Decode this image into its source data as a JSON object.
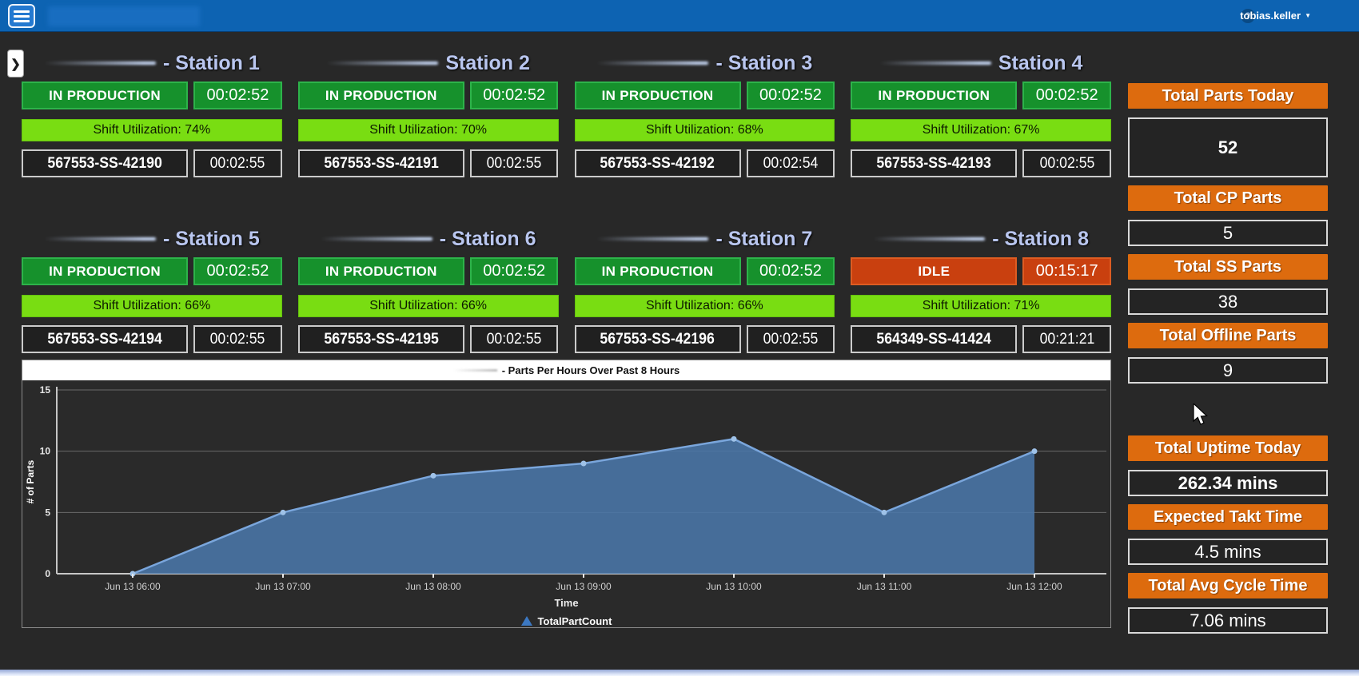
{
  "header": {
    "menu_icon": "hamburger-icon",
    "help_icon": "question-mark-icon",
    "user_name": "tobias.keller",
    "caret": "▼"
  },
  "expander_icon": "❯",
  "stations": [
    {
      "label": "- Station 1",
      "status": "IN PRODUCTION",
      "status_time": "00:02:52",
      "utilization": "Shift Utilization: 74%",
      "part_number": "567553-SS-42190",
      "part_time": "00:02:55"
    },
    {
      "label": "Station 2",
      "status": "IN PRODUCTION",
      "status_time": "00:02:52",
      "utilization": "Shift Utilization: 70%",
      "part_number": "567553-SS-42191",
      "part_time": "00:02:55"
    },
    {
      "label": "- Station 3",
      "status": "IN PRODUCTION",
      "status_time": "00:02:52",
      "utilization": "Shift Utilization: 68%",
      "part_number": "567553-SS-42192",
      "part_time": "00:02:54"
    },
    {
      "label": "Station 4",
      "status": "IN PRODUCTION",
      "status_time": "00:02:52",
      "utilization": "Shift Utilization: 67%",
      "part_number": "567553-SS-42193",
      "part_time": "00:02:55"
    },
    {
      "label": "- Station 5",
      "status": "IN PRODUCTION",
      "status_time": "00:02:52",
      "utilization": "Shift Utilization: 66%",
      "part_number": "567553-SS-42194",
      "part_time": "00:02:55"
    },
    {
      "label": "- Station 6",
      "status": "IN PRODUCTION",
      "status_time": "00:02:52",
      "utilization": "Shift Utilization: 66%",
      "part_number": "567553-SS-42195",
      "part_time": "00:02:55"
    },
    {
      "label": "- Station 7",
      "status": "IN PRODUCTION",
      "status_time": "00:02:52",
      "utilization": "Shift Utilization: 66%",
      "part_number": "567553-SS-42196",
      "part_time": "00:02:55"
    },
    {
      "label": "- Station 8",
      "status": "IDLE",
      "status_time": "00:15:17",
      "utilization": "Shift Utilization: 71%",
      "part_number": "564349-SS-41424",
      "part_time": "00:21:21"
    }
  ],
  "sidebar": {
    "stats": [
      {
        "label": "Total Parts Today",
        "value": "52",
        "tall": true,
        "bold": true,
        "group": "top"
      },
      {
        "label": "Total CP Parts",
        "value": "5",
        "tall": false,
        "bold": false,
        "group": "top"
      },
      {
        "label": "Total SS Parts",
        "value": "38",
        "tall": false,
        "bold": false,
        "group": "top"
      },
      {
        "label": "Total Offline Parts",
        "value": "9",
        "tall": false,
        "bold": false,
        "group": "top"
      },
      {
        "label": "Total Uptime Today",
        "value": "262.34 mins",
        "tall": false,
        "bold": true,
        "group": "bottom"
      },
      {
        "label": "Expected Takt Time",
        "value": "4.5 mins",
        "tall": false,
        "bold": false,
        "group": "bottom"
      },
      {
        "label": "Total Avg Cycle Time",
        "value": "7.06 mins",
        "tall": false,
        "bold": false,
        "group": "bottom"
      }
    ]
  },
  "chart_data": {
    "type": "area",
    "title": "- Parts Per Hours Over Past 8 Hours",
    "x": [
      "Jun 13 06:00",
      "Jun 13 07:00",
      "Jun 13 08:00",
      "Jun 13 09:00",
      "Jun 13 10:00",
      "Jun 13 11:00",
      "Jun 13 12:00"
    ],
    "values": [
      0,
      5,
      8,
      9,
      11,
      5,
      10
    ],
    "xlabel": "Time",
    "ylabel": "# of Parts",
    "ylim": [
      0,
      15
    ],
    "yticks": [
      0,
      5,
      10,
      15
    ],
    "grid": true,
    "legend": [
      "TotalPartCount"
    ],
    "legend_marker": "triangle-icon",
    "line_color": "#7aa6dc",
    "fill_color": "#4a76a9",
    "marker_color": "#9fc2e8"
  },
  "colors": {
    "header_blue": "#0d63b2",
    "status_green": "#16912c",
    "idle_red": "#c9400f",
    "utilization_lime": "#79dd12",
    "accent_orange": "#dd6b0e",
    "station_title": "#b9c6ef",
    "legend_blue": "#3c78c2"
  }
}
